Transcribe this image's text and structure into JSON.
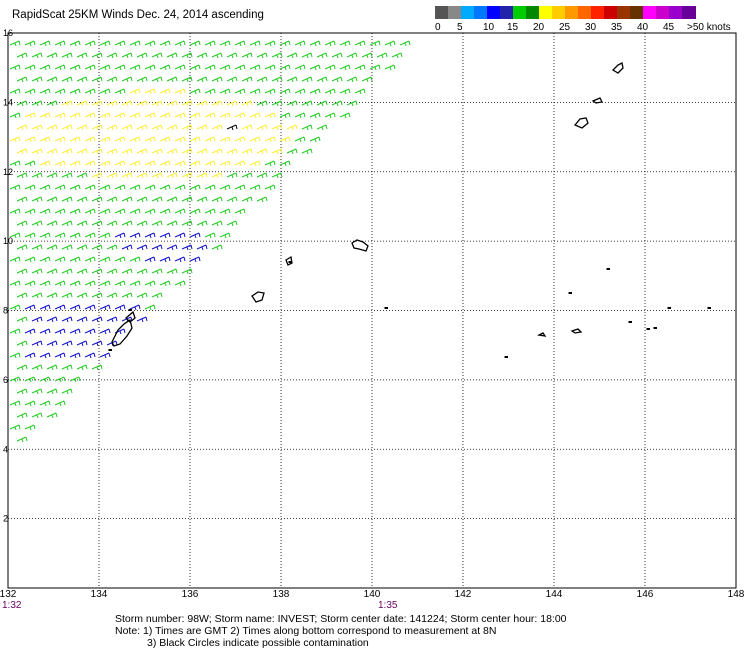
{
  "title": "RapidScat 25KM Winds Dec. 24, 2014 ascending",
  "legend": {
    "colors": [
      "#555555",
      "#888888",
      "#00aaff",
      "#0077ff",
      "#0000ff",
      "#2222aa",
      "#00cc00",
      "#008800",
      "#ffff00",
      "#ffcc00",
      "#ff9900",
      "#ff6600",
      "#ff2200",
      "#cc0000",
      "#993300",
      "#663300",
      "#ff00ff",
      "#cc00cc",
      "#9900cc",
      "#660099"
    ],
    "labels": [
      "0",
      "5",
      "10",
      "15",
      "20",
      "25",
      "30",
      "35",
      "40",
      "45",
      ">50 knots"
    ]
  },
  "map": {
    "lon_range": [
      132,
      148
    ],
    "lat_range": [
      0,
      16
    ],
    "x_ticks": [
      "132",
      "134",
      "136",
      "138",
      "140",
      "142",
      "144",
      "146",
      "148"
    ],
    "y_ticks": [
      "2",
      "4",
      "6",
      "8",
      "10",
      "12",
      "14",
      "16"
    ],
    "y_tick_values": [
      2,
      4,
      6,
      8,
      10,
      12,
      14,
      16
    ],
    "gridlines": true
  },
  "time_labels": [
    "1:32",
    "1:35"
  ],
  "footer": {
    "line1": "Storm number: 98W;  Storm name: INVEST;  Storm center date: 141224;  Storm center hour: 18:00",
    "line2": "Note: 1) Times are GMT  2) Times along bottom correspond to measurement at 8N",
    "line3": "3) Black Circles indicate possible contamination"
  },
  "wind_colors": {
    "green": "#22cc22",
    "yellow": "#ffee33",
    "blue": "#1111cc",
    "black": "#000000"
  }
}
